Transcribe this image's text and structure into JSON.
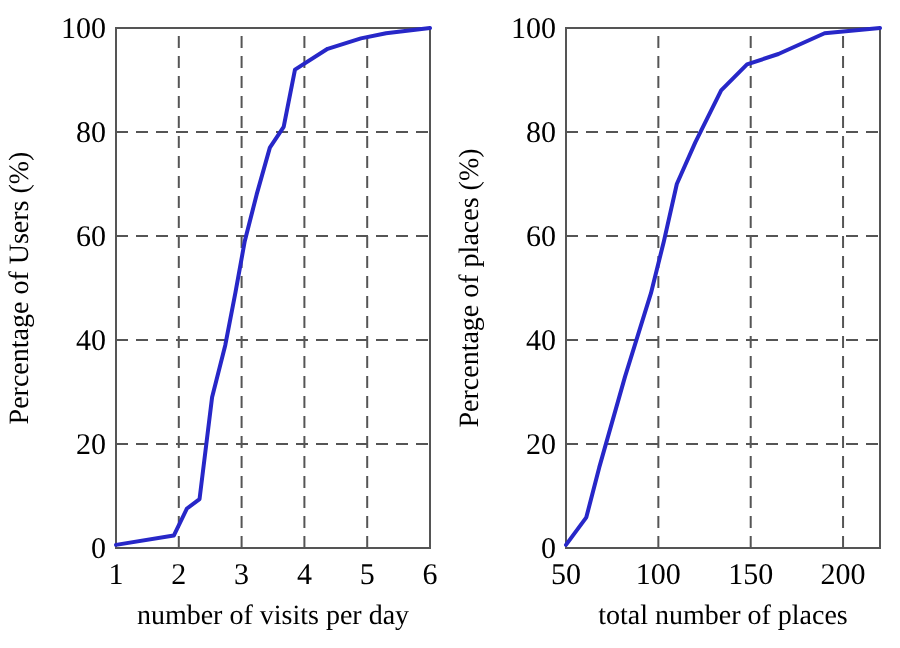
{
  "chart_data": [
    {
      "type": "line",
      "xlabel": "number of visits per day",
      "ylabel": "Percentage of Users (%)",
      "xlim": [
        1,
        6
      ],
      "xticks": [
        1,
        2,
        3,
        4,
        5,
        6
      ],
      "ylim": [
        0,
        100
      ],
      "yticks": [
        0,
        20,
        40,
        60,
        80,
        100
      ],
      "grid": true,
      "series": [
        {
          "color": "#2727c8",
          "x": [
            1,
            1.92,
            2.13,
            2.33,
            2.53,
            2.74,
            2.9,
            3.05,
            3.24,
            3.45,
            3.67,
            3.85,
            4.37,
            4.9,
            5.3,
            6
          ],
          "values": [
            0.6,
            2.4,
            7.6,
            9.4,
            29,
            39,
            49,
            59,
            68,
            77,
            81,
            92,
            96,
            98,
            99,
            100
          ]
        }
      ]
    },
    {
      "type": "line",
      "xlabel": "total number of places",
      "ylabel": "Percentage of places (%)",
      "xlim": [
        50,
        220
      ],
      "xticks": [
        50,
        100,
        150,
        200
      ],
      "ylim": [
        0,
        100
      ],
      "yticks": [
        0,
        20,
        40,
        60,
        80,
        100
      ],
      "grid": true,
      "series": [
        {
          "color": "#2727c8",
          "x": [
            50,
            61,
            68,
            82,
            96,
            103,
            110,
            120,
            134,
            148,
            165,
            190,
            220
          ],
          "values": [
            0.6,
            5.9,
            15.5,
            33,
            49,
            59,
            70,
            78,
            88,
            93,
            95,
            99,
            100
          ]
        }
      ]
    }
  ]
}
